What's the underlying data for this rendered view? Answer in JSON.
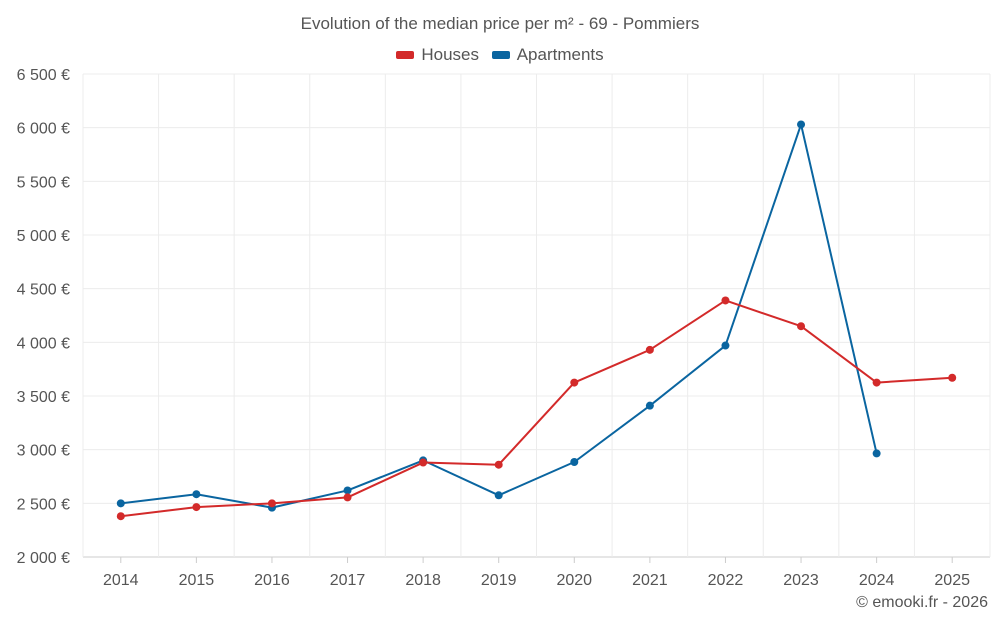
{
  "chart_data": {
    "type": "line",
    "title": "Evolution of the median price per m² - 69 - Pommiers",
    "x": [
      "2014",
      "2015",
      "2016",
      "2017",
      "2018",
      "2019",
      "2020",
      "2021",
      "2022",
      "2023",
      "2024",
      "2025"
    ],
    "ylim": [
      2000,
      6500
    ],
    "yticks": [
      2000,
      2500,
      3000,
      3500,
      4000,
      4500,
      5000,
      5500,
      6000,
      6500
    ],
    "ytick_labels": [
      "2 000 €",
      "2 500 €",
      "3 000 €",
      "3 500 €",
      "4 000 €",
      "4 500 €",
      "5 000 €",
      "5 500 €",
      "6 000 €",
      "6 500 €"
    ],
    "grid": true,
    "legend_position": "top-center",
    "series": [
      {
        "name": "Houses",
        "color": "#d32a2a",
        "values": [
          2380,
          2465,
          2500,
          2555,
          2880,
          2860,
          3625,
          3930,
          4390,
          4150,
          3625,
          3670
        ]
      },
      {
        "name": "Apartments",
        "color": "#0a65a0",
        "values": [
          2500,
          2585,
          2460,
          2620,
          2900,
          2575,
          2885,
          3410,
          3970,
          6030,
          2965,
          null
        ]
      }
    ],
    "credit": "© emooki.fr - 2026"
  }
}
